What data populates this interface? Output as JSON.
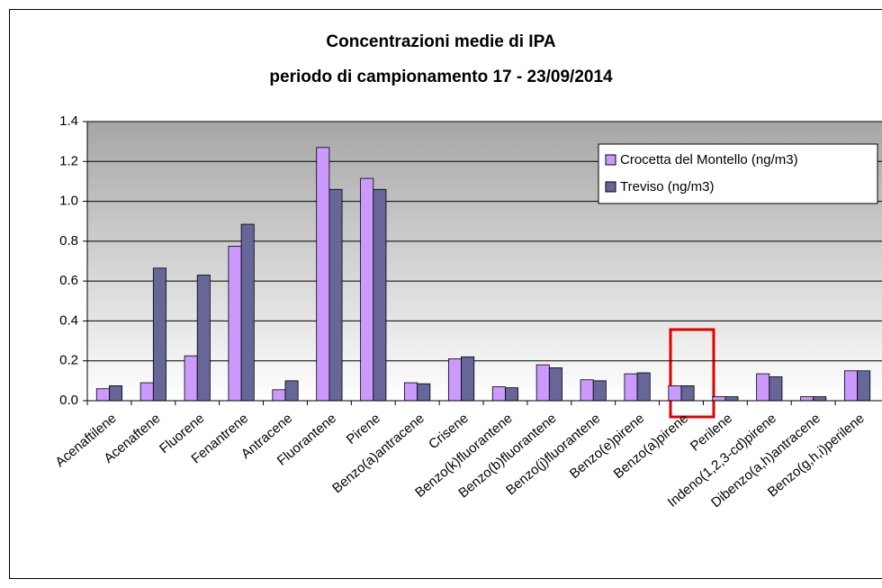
{
  "chart_data": {
    "type": "bar",
    "title": [
      "Concentrazioni medie di IPA",
      "periodo di campionamento 17 - 23/09/2014"
    ],
    "categories": [
      "Acenaftilene",
      "Acenaftene",
      "Fluorene",
      "Fenantrene",
      "Antracene",
      "Fluorantene",
      "Pirene",
      "Benzo(a)antracene",
      "Crisene",
      "Benzo(k)fluorantene",
      "Benzo(b)fluorantene",
      "Benzo(j)fluorantene",
      "Benzo(e)pirene",
      "Benzo(a)pirene",
      "Perilene",
      "Indeno(1,2,3-cd)pirene",
      "Dibenzo(a,h)antracene",
      "Benzo(g,h,i)perilene"
    ],
    "series": [
      {
        "name": "Crocetta del Montello (ng/m3)",
        "color": "#cc99ff",
        "values": [
          0.06,
          0.09,
          0.225,
          0.775,
          0.055,
          1.27,
          1.115,
          0.09,
          0.21,
          0.07,
          0.18,
          0.105,
          0.135,
          0.075,
          0.02,
          0.135,
          0.02,
          0.15
        ]
      },
      {
        "name": "Treviso (ng/m3)",
        "color": "#666699",
        "values": [
          0.075,
          0.665,
          0.63,
          0.885,
          0.1,
          1.06,
          1.06,
          0.085,
          0.22,
          0.065,
          0.165,
          0.1,
          0.14,
          0.075,
          0.02,
          0.12,
          0.02,
          0.15
        ]
      }
    ],
    "ylim": [
      0,
      1.4
    ],
    "yticks": [
      {
        "value": 0,
        "label": "0.0"
      },
      0.2,
      0.4,
      0.6,
      0.8,
      {
        "value": 1,
        "label": "1.0"
      },
      1.2,
      1.4
    ],
    "grid": true,
    "legend": "top-right"
  }
}
